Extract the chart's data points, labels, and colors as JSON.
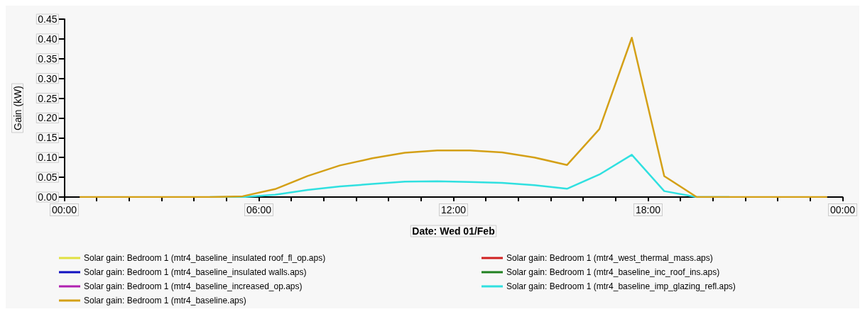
{
  "chart_data": {
    "type": "line",
    "xlabel": "Date: Wed 01/Feb",
    "ylabel": "Gain (kW)",
    "x": [
      0.5,
      1.5,
      2.5,
      3.5,
      4.5,
      5.5,
      6.5,
      7.5,
      8.5,
      9.5,
      10.5,
      11.5,
      12.5,
      13.5,
      14.5,
      15.5,
      16.5,
      17.5,
      18.5,
      19.5,
      20.5,
      21.5,
      22.5,
      23.5
    ],
    "xlim": [
      0,
      24
    ],
    "xticks": [
      {
        "value": 0,
        "label": "00:00"
      },
      {
        "value": 1,
        "label": null
      },
      {
        "value": 2,
        "label": null
      },
      {
        "value": 3,
        "label": null
      },
      {
        "value": 4,
        "label": null
      },
      {
        "value": 5,
        "label": null
      },
      {
        "value": 6,
        "label": "06:00"
      },
      {
        "value": 7,
        "label": null
      },
      {
        "value": 8,
        "label": null
      },
      {
        "value": 9,
        "label": null
      },
      {
        "value": 10,
        "label": null
      },
      {
        "value": 11,
        "label": null
      },
      {
        "value": 12,
        "label": "12:00"
      },
      {
        "value": 13,
        "label": null
      },
      {
        "value": 14,
        "label": null
      },
      {
        "value": 15,
        "label": null
      },
      {
        "value": 16,
        "label": null
      },
      {
        "value": 17,
        "label": null
      },
      {
        "value": 18,
        "label": "18:00"
      },
      {
        "value": 19,
        "label": null
      },
      {
        "value": 20,
        "label": null
      },
      {
        "value": 21,
        "label": null
      },
      {
        "value": 22,
        "label": null
      },
      {
        "value": 23,
        "label": null
      },
      {
        "value": 24,
        "label": "00:00"
      }
    ],
    "ylim": [
      0,
      0.45
    ],
    "yticks": [
      {
        "value": 0,
        "label": "0.00"
      },
      {
        "value": 0.05,
        "label": "0.05"
      },
      {
        "value": 0.1,
        "label": "0.10"
      },
      {
        "value": 0.15,
        "label": "0.15"
      },
      {
        "value": 0.2,
        "label": "0.20"
      },
      {
        "value": 0.25,
        "label": "0.25"
      },
      {
        "value": 0.3,
        "label": "0.30"
      },
      {
        "value": 0.35,
        "label": "0.35"
      },
      {
        "value": 0.4,
        "label": "0.40"
      },
      {
        "value": 0.45,
        "label": "0.45"
      }
    ],
    "grid": false,
    "legend": "bottom",
    "marker": "none",
    "line_style": "solid",
    "series": [
      {
        "name": "Solar gain: Bedroom 1 (mtr4_baseline_insulated roof_fl_op.aps)",
        "color": "#e0e040",
        "values": [
          null,
          null,
          null,
          null,
          null,
          null,
          null,
          null,
          null,
          null,
          null,
          null,
          null,
          null,
          null,
          null,
          null,
          null,
          null,
          null,
          null,
          null,
          null,
          null
        ]
      },
      {
        "name": "Solar gain: Bedroom 1 (mtr4_baseline_insulated walls.aps)",
        "color": "#1010c0",
        "values": [
          null,
          null,
          null,
          null,
          null,
          null,
          null,
          null,
          null,
          null,
          null,
          null,
          null,
          null,
          null,
          null,
          null,
          null,
          null,
          null,
          null,
          null,
          null,
          null
        ]
      },
      {
        "name": "Solar gain: Bedroom 1 (mtr4_baseline_increased_op.aps)",
        "color": "#b020b0",
        "values": [
          null,
          null,
          null,
          null,
          null,
          null,
          null,
          null,
          null,
          null,
          null,
          null,
          null,
          null,
          null,
          null,
          null,
          null,
          null,
          null,
          null,
          null,
          null,
          null
        ]
      },
      {
        "name": "Solar gain: Bedroom 1 (mtr4_baseline.aps)",
        "color": "#d4a017",
        "values": [
          0,
          0,
          0,
          0,
          0,
          0.002,
          0.02,
          0.053,
          0.08,
          0.098,
          0.112,
          0.118,
          0.118,
          0.113,
          0.1,
          0.081,
          0.172,
          0.403,
          0.053,
          0,
          0,
          0,
          0,
          0
        ]
      },
      {
        "name": "Solar gain: Bedroom 1 (mtr4_west_thermal_mass.aps)",
        "color": "#d02020",
        "values": [
          null,
          null,
          null,
          null,
          null,
          null,
          null,
          null,
          null,
          null,
          null,
          null,
          null,
          null,
          null,
          null,
          null,
          null,
          null,
          null,
          null,
          null,
          null,
          null
        ]
      },
      {
        "name": "Solar gain: Bedroom 1 (mtr4_baseline_inc_roof_ins.aps)",
        "color": "#208020",
        "values": [
          null,
          null,
          null,
          null,
          null,
          null,
          null,
          null,
          null,
          null,
          null,
          null,
          null,
          null,
          null,
          null,
          null,
          null,
          null,
          null,
          null,
          null,
          null,
          null
        ]
      },
      {
        "name": "Solar gain: Bedroom 1 (mtr4_baseline_imp_glazing_refl.aps)",
        "color": "#30e0e0",
        "values": [
          null,
          null,
          null,
          null,
          0,
          0,
          0.006,
          0.018,
          0.027,
          0.033,
          0.039,
          0.04,
          0.038,
          0.036,
          0.03,
          0.021,
          0.057,
          0.107,
          0.015,
          0,
          0,
          null,
          null,
          null
        ]
      }
    ]
  }
}
